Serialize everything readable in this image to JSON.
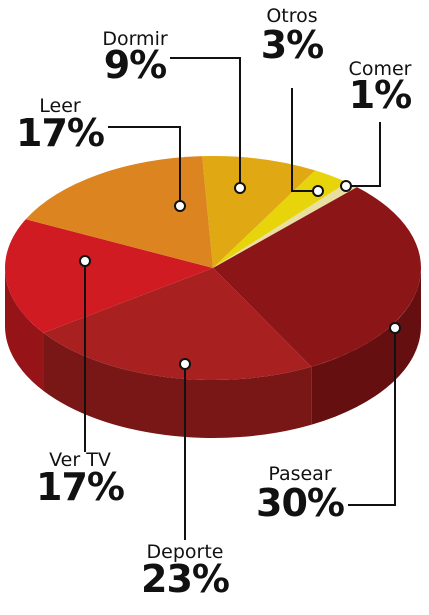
{
  "chart_data": {
    "type": "pie",
    "categories": [
      "Dormir",
      "Otros",
      "Comer",
      "Pasear",
      "Deporte",
      "Ver TV",
      "Leer"
    ],
    "values": [
      9,
      3,
      1,
      30,
      23,
      17,
      17
    ],
    "value_labels": [
      "9%",
      "3%",
      "1%",
      "30%",
      "23%",
      "17%",
      "17%"
    ],
    "colors": [
      "#e0a812",
      "#e8d40a",
      "#e8dfa0",
      "#8c1518",
      "#a8201f",
      "#d01b22",
      "#dc8520"
    ]
  }
}
